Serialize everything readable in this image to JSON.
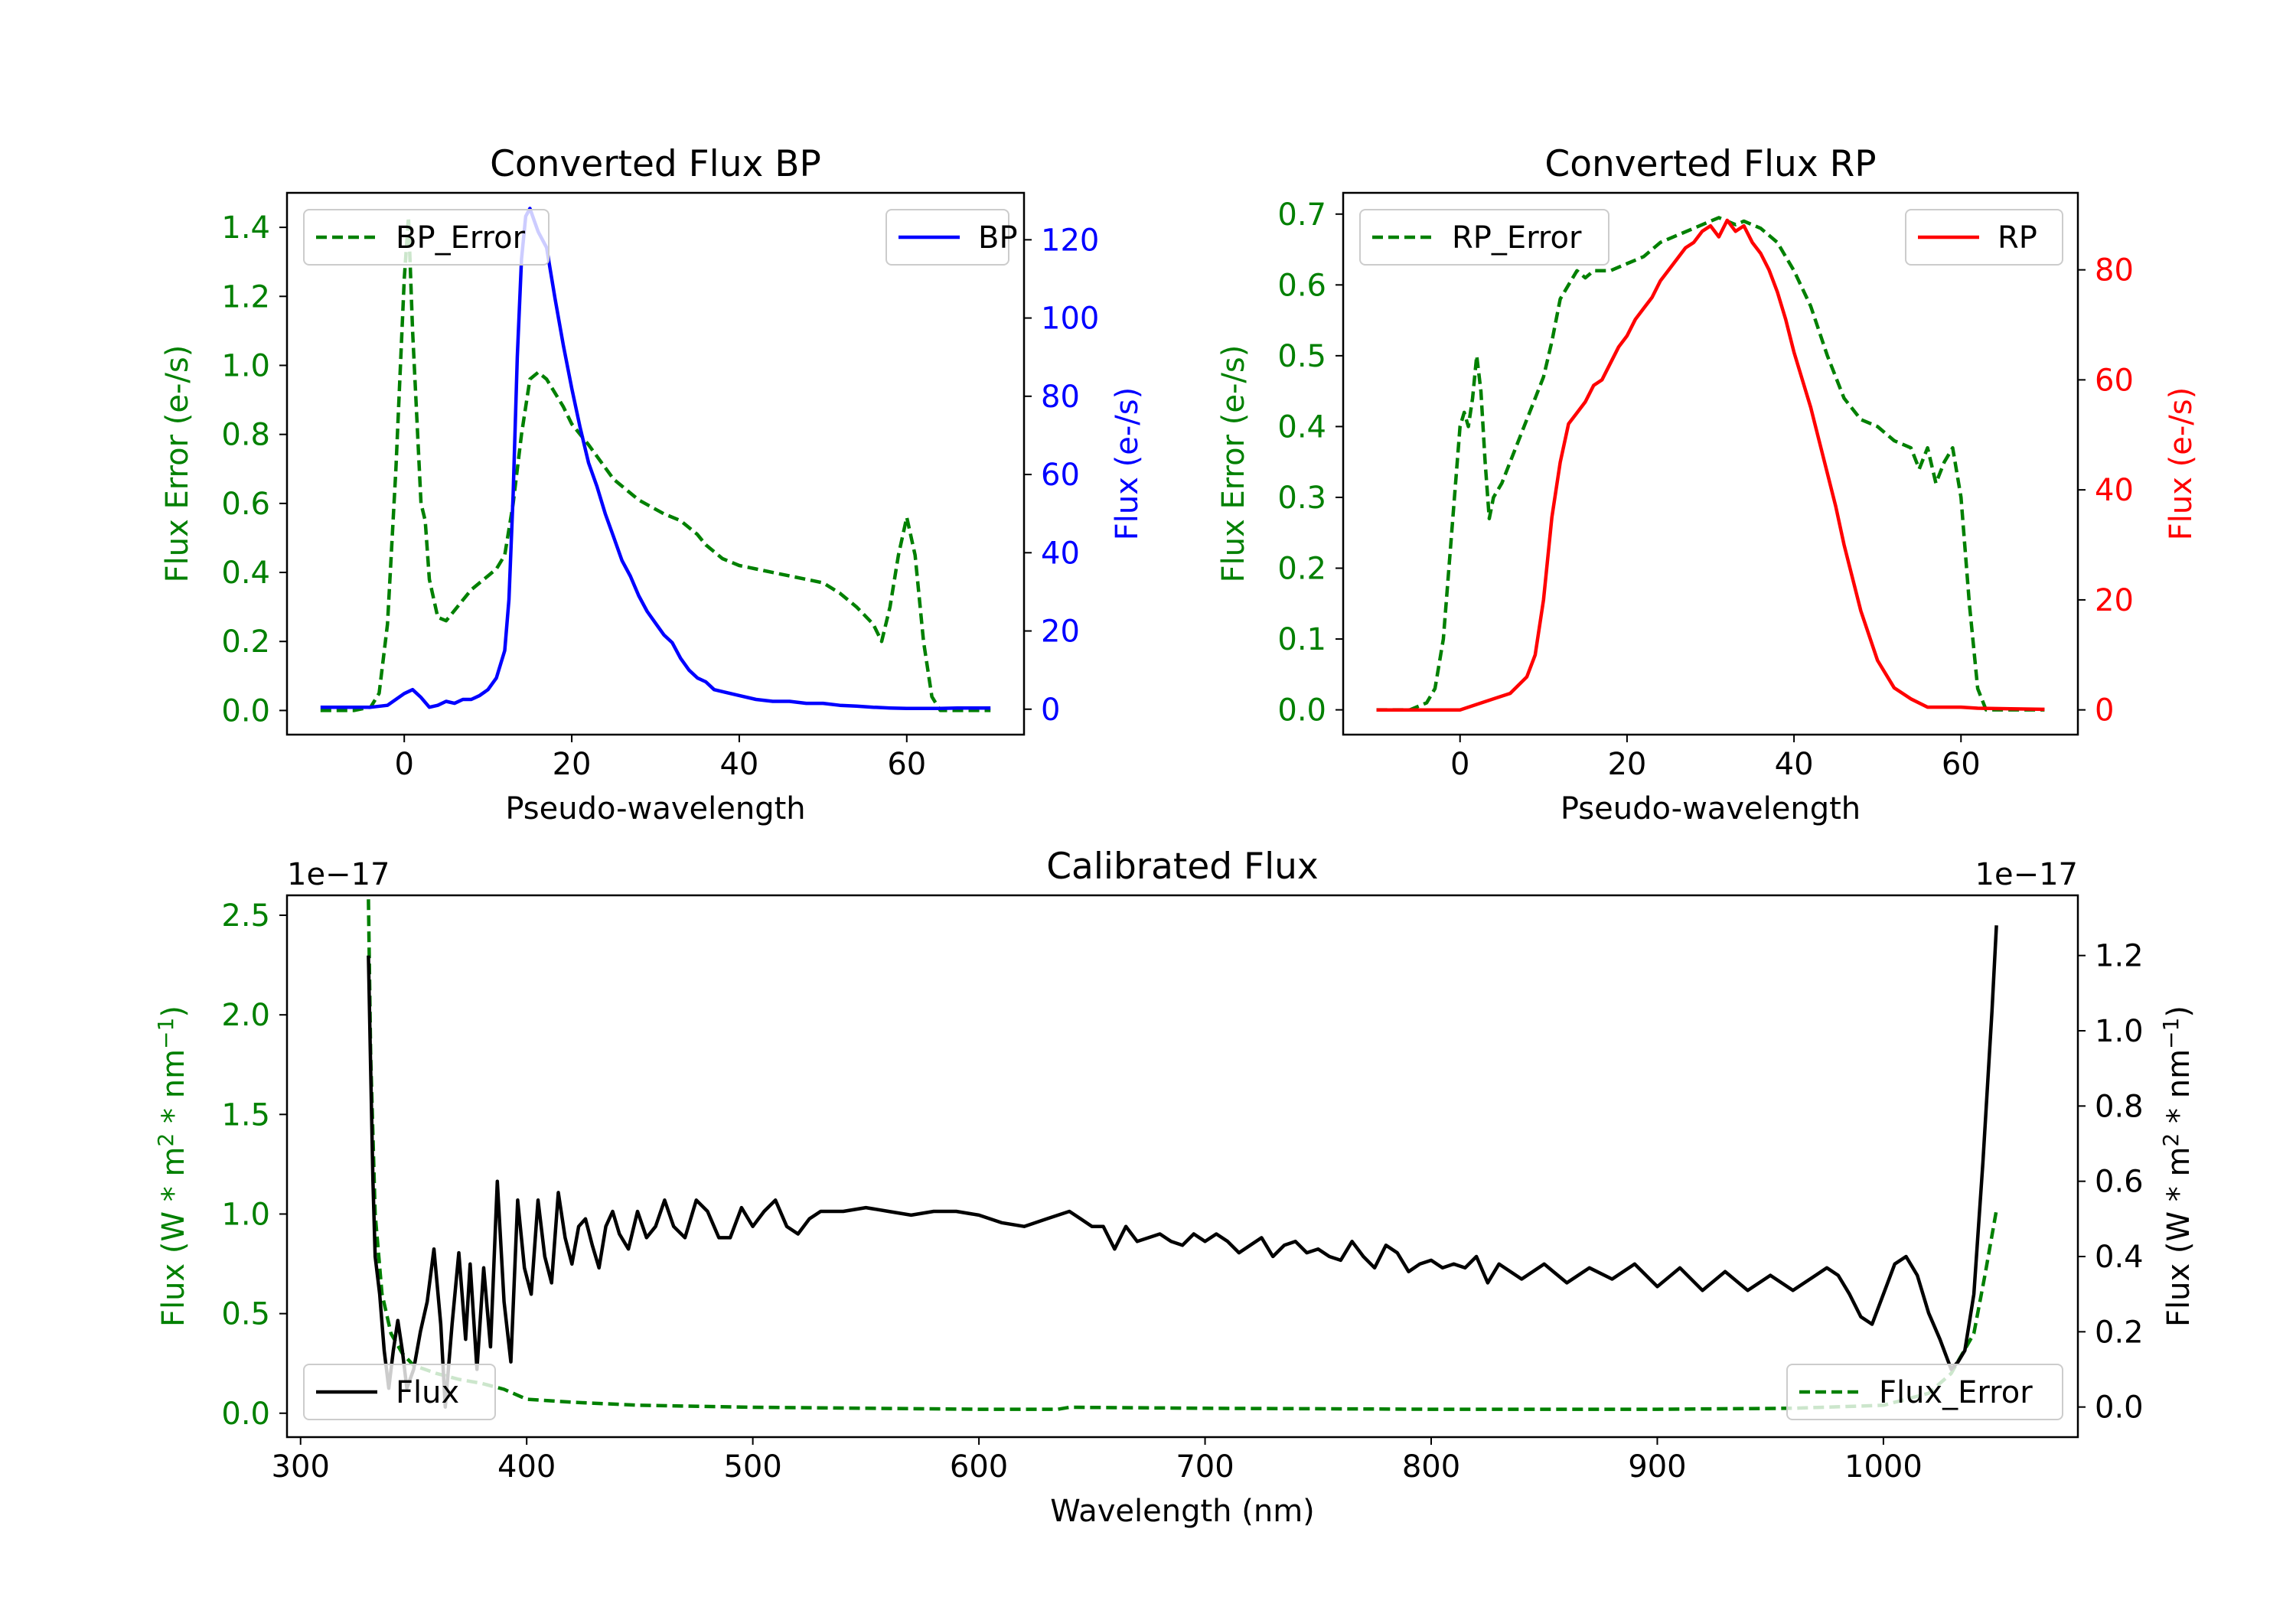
{
  "colors": {
    "bp": "#0000ff",
    "rp": "#ff0000",
    "error": "#008000",
    "flux": "#000000"
  },
  "chart_data": [
    {
      "id": "bp",
      "type": "line",
      "title": "Converted Flux BP",
      "xlabel": "Pseudo-wavelength",
      "ylabel_left": "Flux Error (e-/s)",
      "ylabel_right": "Flux (e-/s)",
      "xlim": [
        -14,
        74
      ],
      "xticks": [
        0,
        20,
        40,
        60
      ],
      "ylim_left": [
        -0.07,
        1.5
      ],
      "yticks_left": [
        0.0,
        0.2,
        0.4,
        0.6,
        0.8,
        1.0,
        1.2,
        1.4
      ],
      "ylim_right": [
        -6.5,
        132
      ],
      "yticks_right": [
        0,
        20,
        40,
        60,
        80,
        100,
        120
      ],
      "legend_left": "BP_Error",
      "legend_right": "BP",
      "series": [
        {
          "name": "BP_Error",
          "axis": "left",
          "style": "dashed",
          "color": "#008000",
          "x": [
            -10,
            -6,
            -4,
            -3,
            -2,
            -1,
            0,
            0.5,
            1,
            1.5,
            2,
            2.5,
            3,
            4,
            5,
            6,
            7,
            8,
            9,
            10,
            11,
            12,
            13,
            14,
            15,
            16,
            17,
            18,
            19,
            20,
            22,
            25,
            28,
            31,
            33,
            35,
            36,
            38,
            40,
            42,
            44,
            46,
            48,
            50,
            52,
            54,
            56,
            57,
            58,
            59,
            60,
            61,
            62,
            63,
            64,
            66,
            70
          ],
          "y": [
            0.0,
            0.0,
            0.01,
            0.05,
            0.25,
            0.7,
            1.25,
            1.43,
            1.1,
            0.85,
            0.6,
            0.55,
            0.38,
            0.27,
            0.26,
            0.29,
            0.32,
            0.35,
            0.37,
            0.39,
            0.41,
            0.45,
            0.6,
            0.8,
            0.96,
            0.98,
            0.96,
            0.92,
            0.88,
            0.83,
            0.77,
            0.67,
            0.61,
            0.57,
            0.55,
            0.51,
            0.48,
            0.44,
            0.42,
            0.41,
            0.4,
            0.39,
            0.38,
            0.37,
            0.34,
            0.3,
            0.25,
            0.2,
            0.3,
            0.45,
            0.56,
            0.45,
            0.2,
            0.04,
            0.0,
            0.0,
            0.0
          ]
        },
        {
          "name": "BP",
          "axis": "right",
          "style": "solid",
          "color": "#0000ff",
          "x": [
            -10,
            -6,
            -4,
            -2,
            0,
            1,
            2,
            3,
            4,
            5,
            6,
            7,
            8,
            9,
            10,
            11,
            12,
            12.5,
            13,
            13.5,
            14,
            14.5,
            15,
            15.5,
            16,
            17,
            18,
            19,
            20,
            21,
            22,
            23,
            24,
            25,
            26,
            27,
            28,
            29,
            30,
            31,
            32,
            33,
            34,
            35,
            36,
            37,
            38,
            40,
            42,
            44,
            46,
            48,
            50,
            52,
            54,
            56,
            58,
            60,
            62,
            64,
            66,
            70
          ],
          "y": [
            0.5,
            0.5,
            0.5,
            1,
            4,
            5,
            3,
            0.5,
            1,
            2,
            1.5,
            2.5,
            2.5,
            3.5,
            5,
            8,
            15,
            28,
            55,
            90,
            115,
            126,
            128,
            125,
            122,
            118,
            105,
            93,
            82,
            72,
            63,
            57,
            50,
            44,
            38,
            34,
            29,
            25,
            22,
            19,
            17,
            13,
            10,
            8,
            7,
            5,
            4.5,
            3.5,
            2.5,
            2,
            2,
            1.5,
            1.5,
            1,
            0.8,
            0.5,
            0.3,
            0.2,
            0.2,
            0.2,
            0.3,
            0.3
          ]
        }
      ]
    },
    {
      "id": "rp",
      "type": "line",
      "title": "Converted Flux RP",
      "xlabel": "Pseudo-wavelength",
      "ylabel_left": "Flux Error (e-/s)",
      "ylabel_right": "Flux (e-/s)",
      "xlim": [
        -14,
        74
      ],
      "xticks": [
        0,
        20,
        40,
        60
      ],
      "ylim_left": [
        -0.035,
        0.73
      ],
      "yticks_left": [
        0.0,
        0.1,
        0.2,
        0.3,
        0.4,
        0.5,
        0.6,
        0.7
      ],
      "ylim_right": [
        -4.5,
        94
      ],
      "yticks_right": [
        0,
        20,
        40,
        60,
        80
      ],
      "legend_left": "RP_Error",
      "legend_right": "RP",
      "series": [
        {
          "name": "RP_Error",
          "axis": "left",
          "style": "dashed",
          "color": "#008000",
          "x": [
            -10,
            -6,
            -4,
            -3,
            -2,
            -1,
            0,
            0.5,
            1,
            1.5,
            2,
            2.5,
            3,
            3.5,
            4,
            5,
            6,
            7,
            8,
            9,
            10,
            11,
            12,
            13,
            14,
            15,
            16,
            17,
            18,
            20,
            22,
            24,
            26,
            28,
            30,
            31,
            32,
            33,
            34,
            35,
            36,
            38,
            40,
            42,
            44,
            46,
            48,
            50,
            52,
            54,
            55,
            56,
            57,
            58,
            59,
            60,
            61,
            62,
            63,
            64,
            66,
            70
          ],
          "y": [
            0.0,
            0.0,
            0.01,
            0.03,
            0.1,
            0.25,
            0.4,
            0.42,
            0.4,
            0.44,
            0.5,
            0.45,
            0.35,
            0.27,
            0.3,
            0.32,
            0.35,
            0.38,
            0.41,
            0.44,
            0.47,
            0.52,
            0.58,
            0.6,
            0.62,
            0.61,
            0.62,
            0.62,
            0.62,
            0.63,
            0.64,
            0.66,
            0.67,
            0.68,
            0.69,
            0.695,
            0.69,
            0.685,
            0.69,
            0.685,
            0.68,
            0.66,
            0.62,
            0.57,
            0.5,
            0.44,
            0.41,
            0.4,
            0.38,
            0.37,
            0.34,
            0.37,
            0.32,
            0.35,
            0.37,
            0.3,
            0.15,
            0.03,
            0.0,
            0.0,
            0.0,
            0.0
          ]
        },
        {
          "name": "RP",
          "axis": "right",
          "style": "solid",
          "color": "#ff0000",
          "x": [
            -10,
            -5,
            0,
            2,
            4,
            6,
            8,
            9,
            10,
            11,
            12,
            13,
            14,
            15,
            16,
            17,
            18,
            19,
            20,
            21,
            22,
            23,
            24,
            25,
            26,
            27,
            28,
            29,
            30,
            31,
            32,
            33,
            34,
            35,
            36,
            37,
            38,
            39,
            40,
            41,
            42,
            43,
            44,
            45,
            46,
            48,
            50,
            52,
            54,
            56,
            58,
            60,
            62,
            66,
            70
          ],
          "y": [
            0,
            0,
            0,
            1,
            2,
            3,
            6,
            10,
            20,
            35,
            45,
            52,
            54,
            56,
            59,
            60,
            63,
            66,
            68,
            71,
            73,
            75,
            78,
            80,
            82,
            84,
            85,
            87,
            88,
            86,
            89,
            87,
            88,
            85,
            83,
            80,
            76,
            71,
            65,
            60,
            55,
            49,
            43,
            37,
            30,
            18,
            9,
            4,
            2,
            0.5,
            0.5,
            0.5,
            0.3,
            0.2,
            0.1
          ]
        }
      ]
    },
    {
      "id": "cal",
      "type": "line",
      "title": "Calibrated Flux",
      "xlabel": "Wavelength (nm)",
      "ylabel_left": "Flux (W * m",
      "ylabel_right": "Flux (W * m",
      "ylabel_mid": " * nm",
      "ylabel_end": ")",
      "ylabel_sup1": "2",
      "ylabel_sup2": "−1",
      "offset_left": "1e−17",
      "offset_right": "1e−17",
      "scale": "1e-17",
      "xlim": [
        294,
        1086
      ],
      "xticks": [
        300,
        400,
        500,
        600,
        700,
        800,
        900,
        1000
      ],
      "ylim_left": [
        -0.12,
        2.6
      ],
      "yticks_left": [
        0.0,
        0.5,
        1.0,
        1.5,
        2.0,
        2.5
      ],
      "ylim_right": [
        -0.08,
        1.36
      ],
      "yticks_right": [
        0.0,
        0.2,
        0.4,
        0.6,
        0.8,
        1.0,
        1.2
      ],
      "legend_left": "Flux",
      "legend_right": "Flux_Error",
      "series": [
        {
          "name": "Flux_Error",
          "axis": "left",
          "style": "dashed",
          "color": "#008000",
          "x": [
            330,
            331,
            333,
            336,
            340,
            345,
            350,
            360,
            370,
            380,
            390,
            400,
            420,
            450,
            500,
            550,
            600,
            635,
            640,
            700,
            800,
            900,
            960,
            1000,
            1020,
            1030,
            1040,
            1045,
            1050
          ],
          "y": [
            2.58,
            1.8,
            1.0,
            0.6,
            0.4,
            0.3,
            0.24,
            0.2,
            0.17,
            0.15,
            0.12,
            0.07,
            0.055,
            0.04,
            0.03,
            0.025,
            0.02,
            0.02,
            0.03,
            0.025,
            0.02,
            0.02,
            0.025,
            0.04,
            0.1,
            0.2,
            0.4,
            0.7,
            1.02
          ]
        },
        {
          "name": "Flux",
          "axis": "right",
          "style": "solid",
          "color": "#000000",
          "x": [
            330,
            331,
            332,
            333,
            335,
            337,
            339,
            341,
            343,
            345,
            347,
            350,
            353,
            356,
            359,
            362,
            364,
            367,
            370,
            373,
            375,
            378,
            381,
            384,
            387,
            390,
            393,
            396,
            399,
            402,
            405,
            408,
            411,
            414,
            417,
            420,
            423,
            426,
            429,
            432,
            435,
            438,
            441,
            445,
            449,
            453,
            457,
            461,
            465,
            470,
            475,
            480,
            485,
            490,
            495,
            500,
            505,
            510,
            515,
            520,
            525,
            530,
            540,
            550,
            560,
            570,
            580,
            590,
            600,
            610,
            620,
            630,
            640,
            645,
            650,
            655,
            660,
            665,
            670,
            675,
            680,
            685,
            690,
            695,
            700,
            705,
            710,
            715,
            720,
            725,
            730,
            735,
            740,
            745,
            750,
            755,
            760,
            765,
            770,
            775,
            780,
            785,
            790,
            795,
            800,
            805,
            810,
            815,
            820,
            825,
            830,
            840,
            850,
            860,
            870,
            880,
            890,
            900,
            910,
            920,
            930,
            940,
            950,
            960,
            970,
            975,
            980,
            985,
            990,
            995,
            1000,
            1005,
            1010,
            1015,
            1020,
            1025,
            1030,
            1033,
            1036,
            1040,
            1044,
            1048,
            1050
          ],
          "y": [
            1.2,
            0.9,
            0.6,
            0.4,
            0.3,
            0.15,
            0.05,
            0.15,
            0.23,
            0.15,
            0.05,
            0.1,
            0.2,
            0.28,
            0.42,
            0.22,
            0.0,
            0.22,
            0.41,
            0.18,
            0.38,
            0.1,
            0.37,
            0.16,
            0.6,
            0.28,
            0.12,
            0.55,
            0.37,
            0.3,
            0.55,
            0.4,
            0.33,
            0.57,
            0.45,
            0.38,
            0.48,
            0.5,
            0.43,
            0.37,
            0.48,
            0.52,
            0.46,
            0.42,
            0.52,
            0.45,
            0.48,
            0.55,
            0.48,
            0.45,
            0.55,
            0.52,
            0.45,
            0.45,
            0.53,
            0.48,
            0.52,
            0.55,
            0.48,
            0.46,
            0.5,
            0.52,
            0.52,
            0.53,
            0.52,
            0.51,
            0.52,
            0.52,
            0.51,
            0.49,
            0.48,
            0.5,
            0.52,
            0.5,
            0.48,
            0.48,
            0.42,
            0.48,
            0.44,
            0.45,
            0.46,
            0.44,
            0.43,
            0.46,
            0.44,
            0.46,
            0.44,
            0.41,
            0.43,
            0.45,
            0.4,
            0.43,
            0.44,
            0.41,
            0.42,
            0.4,
            0.39,
            0.44,
            0.4,
            0.37,
            0.43,
            0.41,
            0.36,
            0.38,
            0.39,
            0.37,
            0.38,
            0.37,
            0.4,
            0.33,
            0.38,
            0.34,
            0.38,
            0.33,
            0.37,
            0.34,
            0.38,
            0.32,
            0.37,
            0.31,
            0.36,
            0.31,
            0.35,
            0.31,
            0.35,
            0.37,
            0.35,
            0.3,
            0.24,
            0.22,
            0.3,
            0.38,
            0.4,
            0.35,
            0.25,
            0.18,
            0.1,
            0.12,
            0.15,
            0.3,
            0.65,
            1.05,
            1.28
          ]
        }
      ]
    }
  ]
}
